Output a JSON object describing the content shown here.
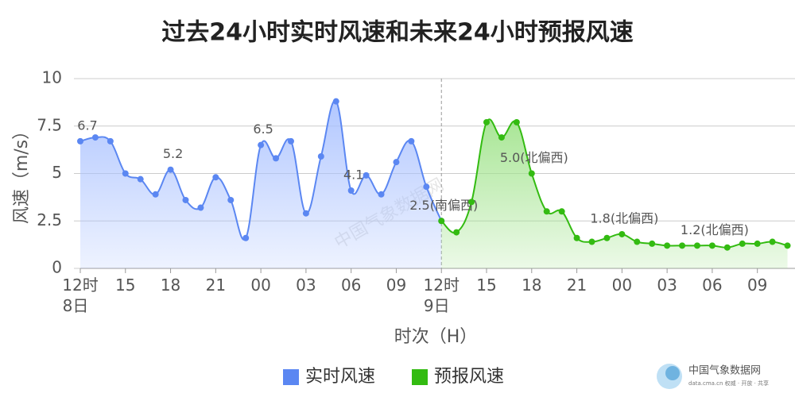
{
  "chart_data": {
    "type": "line",
    "title": "过去24小时实时风速和未来24小时预报风速",
    "x_label": "时次（H）",
    "y_label": "风速（m/s）",
    "xlim": [
      0,
      47.5
    ],
    "ylim": [
      0,
      10
    ],
    "yticks": [
      0,
      2.5,
      5,
      7.5,
      10
    ],
    "xticks": [
      {
        "value": 0,
        "label": "12时\n8日"
      },
      {
        "value": 3,
        "label": "15"
      },
      {
        "value": 6,
        "label": "18"
      },
      {
        "value": 9,
        "label": "21"
      },
      {
        "value": 12,
        "label": "00"
      },
      {
        "value": 15,
        "label": "03"
      },
      {
        "value": 18,
        "label": "06"
      },
      {
        "value": 21,
        "label": "09"
      },
      {
        "value": 24,
        "label": "12时\n9日"
      },
      {
        "value": 27,
        "label": "15"
      },
      {
        "value": 30,
        "label": "18"
      },
      {
        "value": 33,
        "label": "21"
      },
      {
        "value": 36,
        "label": "00"
      },
      {
        "value": 39,
        "label": "03"
      },
      {
        "value": 42,
        "label": "06"
      },
      {
        "value": 45,
        "label": "09"
      }
    ],
    "grid": true,
    "divider_x": 24,
    "series": [
      {
        "name": "实时风速",
        "color": "#5b87f2",
        "area_color": "#a9c1ff",
        "x": [
          0,
          1,
          2,
          3,
          4,
          5,
          6,
          7,
          8,
          9,
          10,
          11,
          12,
          13,
          14,
          15,
          16,
          17,
          18,
          19,
          20,
          21,
          22,
          23,
          24
        ],
        "values": [
          6.7,
          6.9,
          6.7,
          5.0,
          4.7,
          3.9,
          5.2,
          3.6,
          3.2,
          4.8,
          3.6,
          1.6,
          6.5,
          5.8,
          6.7,
          2.9,
          5.9,
          8.8,
          4.1,
          4.9,
          3.9,
          5.6,
          6.7,
          4.3,
          2.5
        ],
        "value_labels": [
          "6.7",
          null,
          null,
          null,
          null,
          null,
          "5.2",
          null,
          null,
          null,
          null,
          null,
          "6.5",
          null,
          null,
          null,
          null,
          null,
          "4.1",
          null,
          null,
          null,
          null,
          null,
          null
        ]
      },
      {
        "name": "预报风速",
        "color": "#33bb11",
        "area_color": "#9fe38a",
        "x": [
          24,
          25,
          26,
          27,
          28,
          29,
          30,
          31,
          32,
          33,
          34,
          35,
          36,
          37,
          38,
          39,
          40,
          41,
          42,
          43,
          44,
          45,
          46,
          47
        ],
        "values": [
          2.5,
          1.9,
          3.5,
          7.7,
          6.9,
          7.7,
          5.0,
          3.0,
          3.0,
          1.6,
          1.4,
          1.6,
          1.8,
          1.4,
          1.3,
          1.2,
          1.2,
          1.2,
          1.2,
          1.1,
          1.3,
          1.3,
          1.4,
          1.2
        ],
        "value_labels": [
          "2.5(南偏西)",
          null,
          null,
          null,
          null,
          null,
          "5.0(北偏西)",
          null,
          null,
          null,
          null,
          null,
          "1.8(北偏西)",
          null,
          null,
          null,
          null,
          null,
          "1.2(北偏西)",
          null,
          null,
          null,
          null,
          null
        ]
      }
    ],
    "watermark": "中国气象数据网",
    "source": "中国气象数据网",
    "source_note": "data.cma.cn 权威 · 开放 · 共享"
  }
}
